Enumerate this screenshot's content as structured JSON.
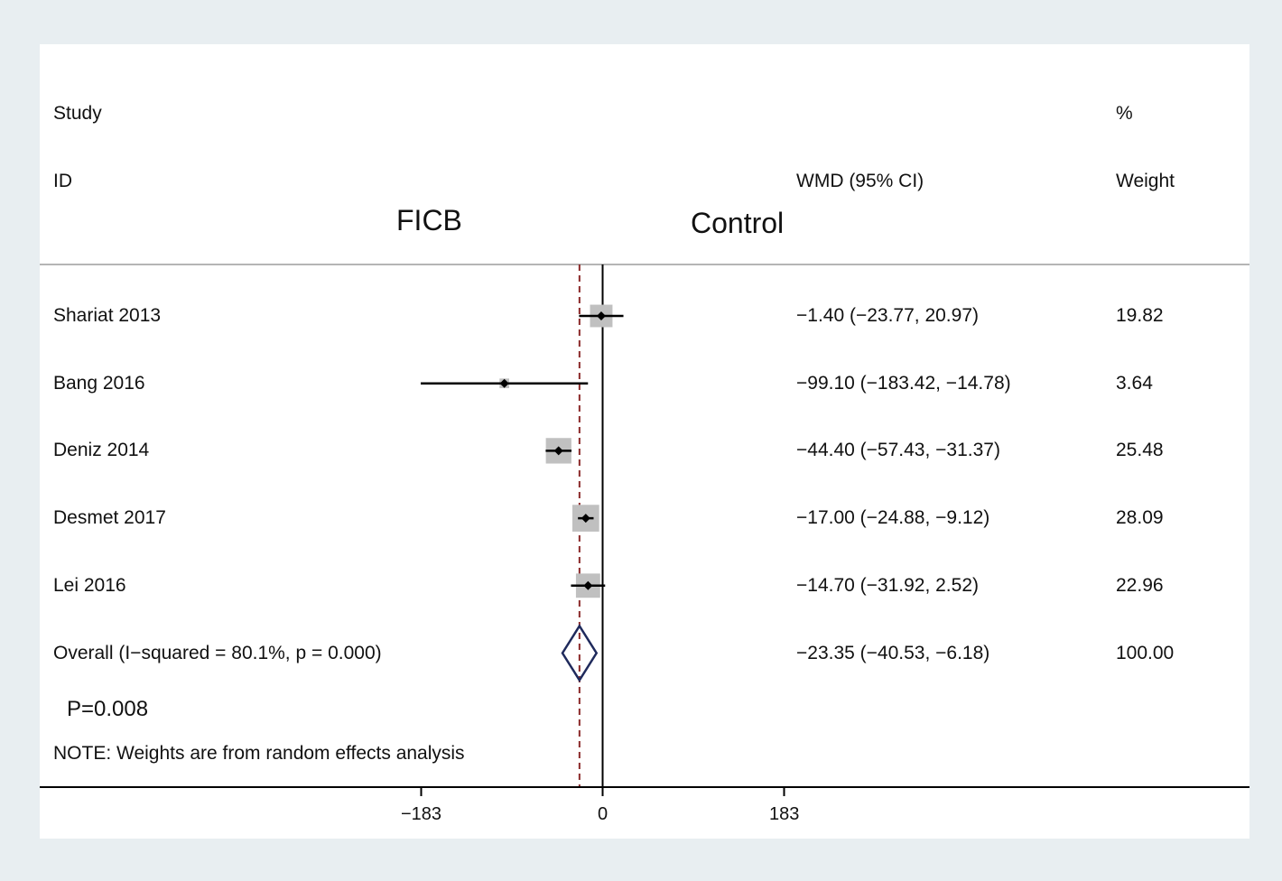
{
  "chart_data": {
    "type": "forest",
    "headers": {
      "study_line1": "Study",
      "study_line2": "ID",
      "effect": "WMD (95% CI)",
      "weight_line1": "%",
      "weight_line2": "Weight"
    },
    "side_labels": {
      "left": "FICB",
      "right": "Control"
    },
    "studies": [
      {
        "id": "Shariat 2013",
        "wmd": -1.4,
        "lo": -23.77,
        "hi": 20.97,
        "ci_text": "−1.40 (−23.77, 20.97)",
        "weight": 19.82,
        "weight_text": "19.82"
      },
      {
        "id": "Bang 2016",
        "wmd": -99.1,
        "lo": -183.42,
        "hi": -14.78,
        "ci_text": "−99.10 (−183.42, −14.78)",
        "weight": 3.64,
        "weight_text": "3.64"
      },
      {
        "id": "Deniz 2014",
        "wmd": -44.4,
        "lo": -57.43,
        "hi": -31.37,
        "ci_text": "−44.40 (−57.43, −31.37)",
        "weight": 25.48,
        "weight_text": "25.48"
      },
      {
        "id": "Desmet 2017",
        "wmd": -17.0,
        "lo": -24.88,
        "hi": -9.12,
        "ci_text": "−17.00 (−24.88, −9.12)",
        "weight": 28.09,
        "weight_text": "28.09"
      },
      {
        "id": "Lei 2016",
        "wmd": -14.7,
        "lo": -31.92,
        "hi": 2.52,
        "ci_text": "−14.70 (−31.92, 2.52)",
        "weight": 22.96,
        "weight_text": "22.96"
      }
    ],
    "overall": {
      "label": "Overall  (I−squared = 80.1%, p = 0.000)",
      "wmd": -23.35,
      "lo": -40.53,
      "hi": -6.18,
      "ci_text": "−23.35 (−40.53, −6.18)",
      "weight_text": "100.00"
    },
    "p_value_text": "P=0.008",
    "note": "NOTE: Weights are from random effects analysis",
    "x_axis": {
      "ticks": [
        -183,
        0,
        183
      ],
      "tick_labels": [
        "−183",
        "0",
        "183"
      ]
    },
    "colors": {
      "box": "#c0c0c0",
      "overall_diamond": "#1f2a5c",
      "overall_line": "#8b2a2a",
      "line": "#000000"
    }
  }
}
